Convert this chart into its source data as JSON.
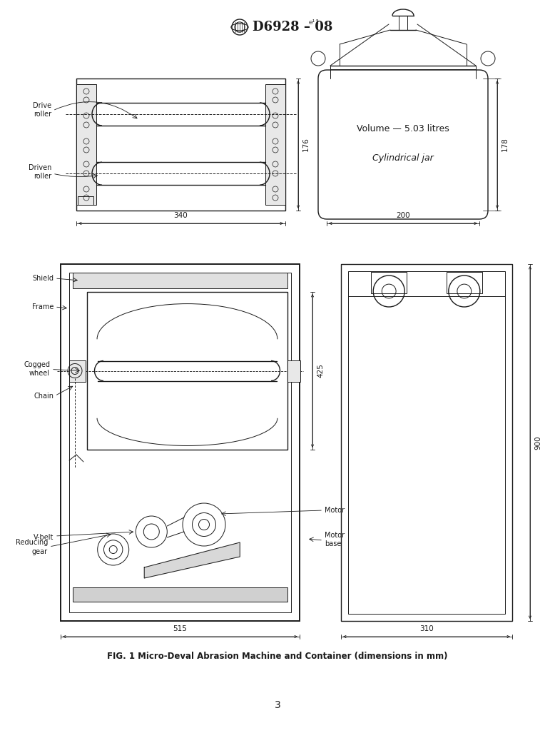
{
  "bg_color": "#ffffff",
  "line_color": "#1a1a1a",
  "fig_caption": "FIG. 1 Micro-Deval Abrasion Machine and Container (dimensions in mm)",
  "page_number": "3",
  "label_fontsize": 7.0,
  "dim_fontsize": 7.5,
  "title_text": "D6928 – 08",
  "title_sup": "e¹"
}
